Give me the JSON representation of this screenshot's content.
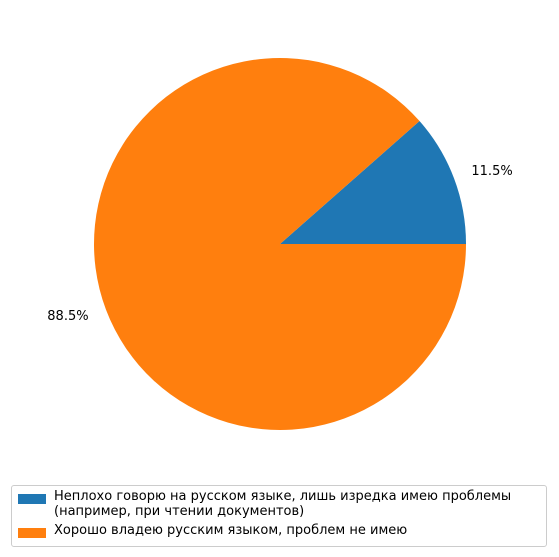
{
  "chart_data": {
    "type": "pie",
    "slices": [
      {
        "label": "Неплохо говорю на русском языке, лишь изредка имею проблемы\n(например, при чтении документов)",
        "value": 11.5,
        "display": "11.5%",
        "color": "#1f77b4"
      },
      {
        "label": "Хорошо владею русским языком, проблем не имею",
        "value": 88.5,
        "display": "88.5%",
        "color": "#ff7f0e"
      }
    ],
    "start_angle_deg": 0,
    "direction": "counterclockwise",
    "legend_position": "bottom"
  }
}
